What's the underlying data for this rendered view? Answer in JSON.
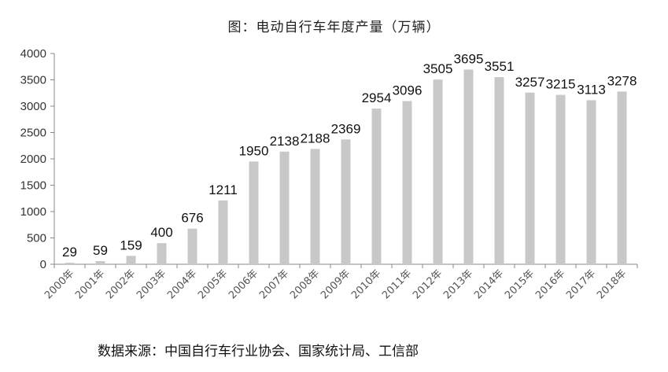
{
  "chart_data": {
    "type": "bar",
    "title": "图：电动自行车年度产量（万辆）",
    "categories": [
      "2000年",
      "2001年",
      "2002年",
      "2003年",
      "2004年",
      "2005年",
      "2006年",
      "2007年",
      "2008年",
      "2009年",
      "2010年",
      "2011年",
      "2012年",
      "2013年",
      "2014年",
      "2015年",
      "2016年",
      "2017年",
      "2018年"
    ],
    "series": [
      {
        "values": [
          29,
          59,
          159,
          400,
          676,
          1211,
          1950,
          2138,
          2188,
          2369,
          2954,
          3096,
          3505,
          3695,
          3551,
          3257,
          3215,
          3113,
          3278
        ]
      }
    ],
    "data_labels": [
      "29",
      "59",
      "159",
      "400",
      "676",
      "1211",
      "1950",
      "2138",
      "2188",
      "2369",
      "2954",
      "3096",
      "3505",
      "3695",
      "3551",
      "3257",
      "3215",
      "3113",
      "3278"
    ],
    "ylim": [
      0,
      4000
    ],
    "yticks": [
      0,
      500,
      1000,
      1500,
      2000,
      2500,
      3000,
      3500,
      4000
    ],
    "ytick_labels": [
      "0",
      "500",
      "1000",
      "1500",
      "2000",
      "2500",
      "3000",
      "3500",
      "4000"
    ],
    "xlabel": "",
    "ylabel": "",
    "grid": false,
    "bar_color": "#c8c8c8"
  },
  "source": "数据来源：中国自行车行业协会、国家统计局、工信部"
}
